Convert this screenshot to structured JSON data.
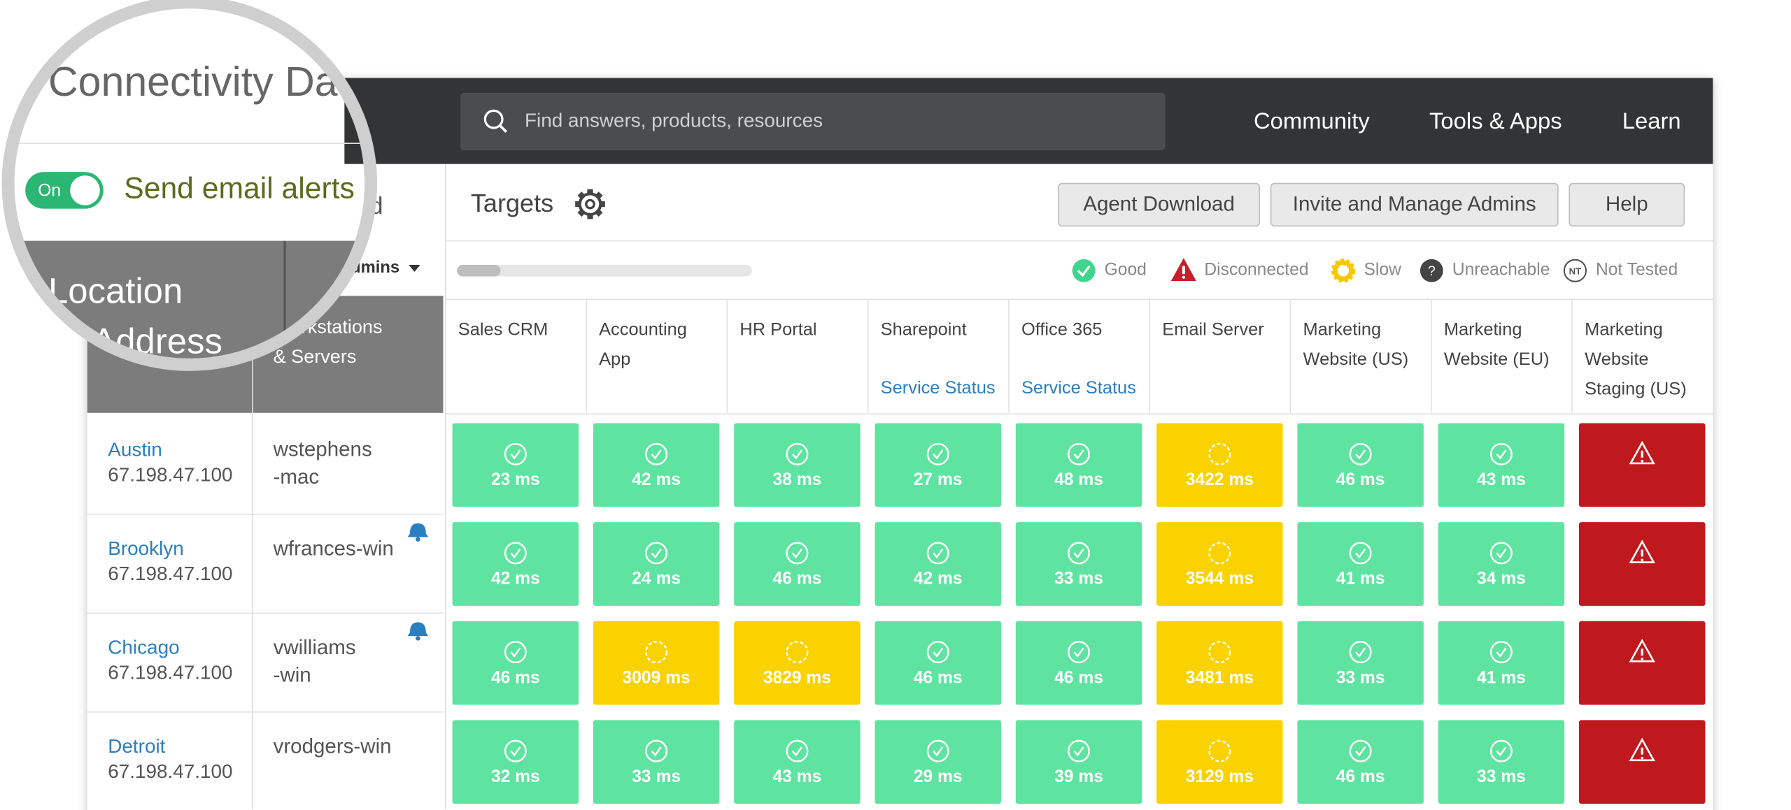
{
  "magnifier": {
    "title": "Connectivity Da",
    "toggle": "On",
    "toggle_label": "Send email alerts",
    "header": [
      "Location",
      "Address"
    ]
  },
  "sidebar": {
    "hidden_text": "d",
    "admins_filter": "All Admins",
    "columns": [
      "Workstations",
      "& Servers"
    ]
  },
  "topbar": {
    "search_placeholder": "Find answers, products, resources",
    "nav": [
      "Community",
      "Tools & Apps",
      "Learn"
    ]
  },
  "toolbar": {
    "title": "Targets",
    "buttons": [
      "Agent Download",
      "Invite and Manage Admins",
      "Help"
    ]
  },
  "legend": [
    {
      "label": "Good",
      "status": "good"
    },
    {
      "label": "Disconnected",
      "status": "disconnected"
    },
    {
      "label": "Slow",
      "status": "slow"
    },
    {
      "label": "Unreachable",
      "status": "unreachable"
    },
    {
      "label": "Not Tested",
      "status": "nt",
      "icon": "NT"
    }
  ],
  "targets": [
    {
      "name": [
        "Sales CRM"
      ]
    },
    {
      "name": [
        "Accounting",
        "App"
      ]
    },
    {
      "name": [
        "HR Portal"
      ]
    },
    {
      "name": [
        "Sharepoint"
      ],
      "link": "Service Status"
    },
    {
      "name": [
        "Office 365"
      ],
      "link": "Service Status"
    },
    {
      "name": [
        "Email Server"
      ]
    },
    {
      "name": [
        "Marketing",
        "Website (US)"
      ]
    },
    {
      "name": [
        "Marketing",
        "Website (EU)"
      ]
    },
    {
      "name": [
        "Marketing",
        "Website",
        "Staging (US)"
      ]
    }
  ],
  "rows": [
    {
      "location": "Austin",
      "ip": "67.198.47.100",
      "host": [
        "wstephens",
        "-mac"
      ],
      "alert": false,
      "cells": [
        {
          "status": "good",
          "label": "23 ms"
        },
        {
          "status": "good",
          "label": "42 ms"
        },
        {
          "status": "good",
          "label": "38 ms"
        },
        {
          "status": "good",
          "label": "27 ms"
        },
        {
          "status": "good",
          "label": "48 ms"
        },
        {
          "status": "slow",
          "label": "3422 ms"
        },
        {
          "status": "good",
          "label": "46 ms"
        },
        {
          "status": "good",
          "label": "43 ms"
        },
        {
          "status": "disconnected"
        }
      ]
    },
    {
      "location": "Brooklyn",
      "ip": "67.198.47.100",
      "host": [
        "wfrances-win"
      ],
      "alert": true,
      "cells": [
        {
          "status": "good",
          "label": "42 ms"
        },
        {
          "status": "good",
          "label": "24 ms"
        },
        {
          "status": "good",
          "label": "46 ms"
        },
        {
          "status": "good",
          "label": "42 ms"
        },
        {
          "status": "good",
          "label": "33 ms"
        },
        {
          "status": "slow",
          "label": "3544 ms"
        },
        {
          "status": "good",
          "label": "41 ms"
        },
        {
          "status": "good",
          "label": "34 ms"
        },
        {
          "status": "disconnected"
        }
      ]
    },
    {
      "location": "Chicago",
      "ip": "67.198.47.100",
      "host": [
        "vwilliams",
        "-win"
      ],
      "alert": true,
      "cells": [
        {
          "status": "good",
          "label": "46 ms"
        },
        {
          "status": "slow",
          "label": "3009 ms"
        },
        {
          "status": "slow",
          "label": "3829 ms"
        },
        {
          "status": "good",
          "label": "46 ms"
        },
        {
          "status": "good",
          "label": "46 ms"
        },
        {
          "status": "slow",
          "label": "3481 ms"
        },
        {
          "status": "good",
          "label": "33 ms"
        },
        {
          "status": "good",
          "label": "41 ms"
        },
        {
          "status": "disconnected"
        }
      ]
    },
    {
      "location": "Detroit",
      "ip": "67.198.47.100",
      "host": [
        "vrodgers-win"
      ],
      "alert": false,
      "cells": [
        {
          "status": "good",
          "label": "32 ms"
        },
        {
          "status": "good",
          "label": "33 ms"
        },
        {
          "status": "good",
          "label": "43 ms"
        },
        {
          "status": "good",
          "label": "29 ms"
        },
        {
          "status": "good",
          "label": "39 ms"
        },
        {
          "status": "slow",
          "label": "3129 ms"
        },
        {
          "status": "good",
          "label": "46 ms"
        },
        {
          "status": "good",
          "label": "33 ms"
        },
        {
          "status": "disconnected"
        }
      ]
    }
  ]
}
